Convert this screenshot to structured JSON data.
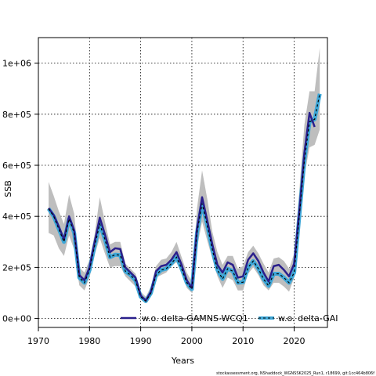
{
  "chart_data": {
    "type": "line",
    "xlabel": "Years",
    "ylabel": "SSB",
    "xlim": [
      1970,
      2026.5
    ],
    "ylim": [
      -35000,
      1100000
    ],
    "xticks": [
      1970,
      1980,
      1990,
      2000,
      2010,
      2020
    ],
    "xtick_labels": [
      "1970",
      "1980",
      "1990",
      "2000",
      "2010",
      "2020"
    ],
    "yticks": [
      0,
      200000,
      400000,
      600000,
      800000,
      1000000
    ],
    "ytick_labels": [
      "0e+00",
      "2e+05",
      "4e+05",
      "6e+05",
      "8e+05",
      "1e+06"
    ],
    "grid": true,
    "legend_position": "bottom-right",
    "footer": "stockassessment.org, NShaddock_WGNSSK2025_Run1, r18699, git:1cc464b806f",
    "band": {
      "color": "#bebebe",
      "x": [
        1972,
        1973,
        1974,
        1975,
        1976,
        1977,
        1978,
        1979,
        1980,
        1981,
        1982,
        1983,
        1984,
        1985,
        1986,
        1987,
        1988,
        1989,
        1990,
        1991,
        1992,
        1993,
        1994,
        1995,
        1996,
        1997,
        1998,
        1999,
        2000,
        2001,
        2002,
        2003,
        2004,
        2005,
        2006,
        2007,
        2008,
        2009,
        2010,
        2011,
        2012,
        2013,
        2014,
        2015,
        2016,
        2017,
        2018,
        2019,
        2020,
        2021,
        2022,
        2023,
        2024,
        2025
      ],
      "upper": [
        535000,
        480000,
        420000,
        370000,
        485000,
        410000,
        200000,
        180000,
        230000,
        330000,
        475000,
        380000,
        290000,
        300000,
        300000,
        215000,
        195000,
        175000,
        105000,
        85000,
        125000,
        205000,
        230000,
        235000,
        260000,
        300000,
        240000,
        180000,
        145000,
        430000,
        580000,
        470000,
        340000,
        260000,
        210000,
        245000,
        245000,
        195000,
        205000,
        260000,
        285000,
        255000,
        215000,
        180000,
        235000,
        240000,
        225000,
        195000,
        255000,
        500000,
        760000,
        890000,
        890000,
        1060000
      ],
      "lower": [
        335000,
        325000,
        275000,
        245000,
        325000,
        270000,
        130000,
        110000,
        160000,
        250000,
        315000,
        255000,
        200000,
        205000,
        205000,
        165000,
        145000,
        125000,
        75000,
        60000,
        90000,
        160000,
        170000,
        180000,
        205000,
        220000,
        175000,
        120000,
        100000,
        275000,
        380000,
        305000,
        235000,
        165000,
        120000,
        160000,
        150000,
        110000,
        110000,
        175000,
        200000,
        170000,
        130000,
        110000,
        140000,
        140000,
        125000,
        105000,
        160000,
        340000,
        560000,
        670000,
        680000,
        740000
      ]
    },
    "series": [
      {
        "name": "w.o. delta-GAMNS-WCQ1",
        "color": "#2a1f8c",
        "style": "solid",
        "x": [
          1972,
          1973,
          1974,
          1975,
          1976,
          1977,
          1978,
          1979,
          1980,
          1981,
          1982,
          1983,
          1984,
          1985,
          1986,
          1987,
          1988,
          1989,
          1990,
          1991,
          1992,
          1993,
          1994,
          1995,
          1996,
          1997,
          1998,
          1999,
          2000,
          2001,
          2002,
          2003,
          2004,
          2005,
          2006,
          2007,
          2008,
          2009,
          2010,
          2011,
          2012,
          2013,
          2014,
          2015,
          2016,
          2017,
          2018,
          2019,
          2020,
          2021,
          2022,
          2023,
          2024
        ],
        "values": [
          432000,
          405000,
          360000,
          310000,
          400000,
          345000,
          170000,
          150000,
          200000,
          300000,
          395000,
          330000,
          260000,
          275000,
          272000,
          200000,
          180000,
          160000,
          90000,
          70000,
          105000,
          185000,
          205000,
          210000,
          230000,
          260000,
          210000,
          150000,
          120000,
          350000,
          475000,
          385000,
          290000,
          210000,
          180000,
          220000,
          210000,
          160000,
          165000,
          230000,
          255000,
          225000,
          180000,
          145000,
          205000,
          210000,
          190000,
          165000,
          215000,
          420000,
          650000,
          805000,
          750000
        ]
      },
      {
        "name": "w.o. delta-GAI",
        "color": "#3da7d8",
        "style": "dashed",
        "x": [
          1972,
          1973,
          1974,
          1975,
          1976,
          1977,
          1978,
          1979,
          1980,
          1981,
          1982,
          1983,
          1984,
          1985,
          1986,
          1987,
          1988,
          1989,
          1990,
          1991,
          1992,
          1993,
          1994,
          1995,
          1996,
          1997,
          1998,
          1999,
          2000,
          2001,
          2002,
          2003,
          2004,
          2005,
          2006,
          2007,
          2008,
          2009,
          2010,
          2011,
          2012,
          2013,
          2014,
          2015,
          2016,
          2017,
          2018,
          2019,
          2020,
          2021,
          2022,
          2023,
          2024,
          2025
        ],
        "values": [
          430000,
          400000,
          350000,
          300000,
          390000,
          335000,
          160000,
          140000,
          190000,
          285000,
          370000,
          310000,
          240000,
          250000,
          248000,
          185000,
          170000,
          148000,
          85000,
          68000,
          100000,
          170000,
          190000,
          195000,
          215000,
          240000,
          195000,
          140000,
          115000,
          335000,
          450000,
          365000,
          270000,
          190000,
          155000,
          195000,
          185000,
          140000,
          142000,
          200000,
          225000,
          195000,
          155000,
          128000,
          175000,
          175000,
          160000,
          140000,
          180000,
          400000,
          620000,
          770000,
          780000,
          880000
        ]
      }
    ]
  }
}
